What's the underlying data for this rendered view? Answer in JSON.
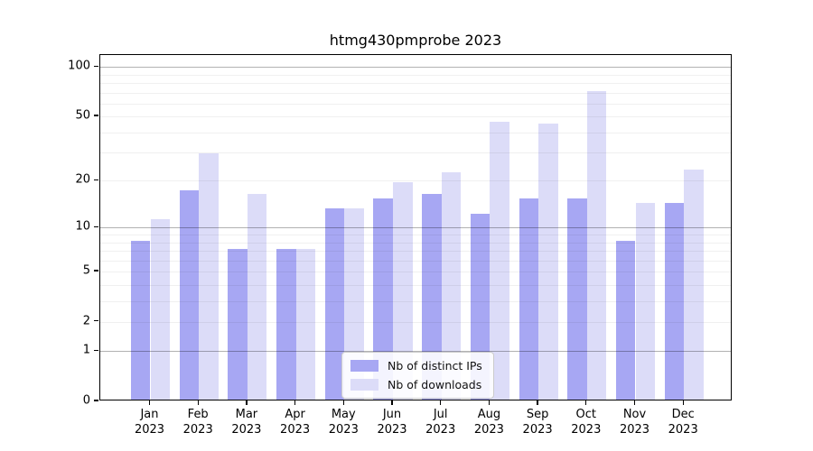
{
  "title": "htmg430pmprobe 2023",
  "chart_data": {
    "type": "bar",
    "title": "htmg430pmprobe 2023",
    "months": [
      "Jan",
      "Feb",
      "Mar",
      "Apr",
      "May",
      "Jun",
      "Jul",
      "Aug",
      "Sep",
      "Oct",
      "Nov",
      "Dec"
    ],
    "year": "2023",
    "series": [
      {
        "name": "Nb of distinct IPs",
        "color": "#a7a7f3",
        "values": [
          8,
          17,
          7,
          7,
          13,
          15,
          16,
          12,
          15,
          15,
          8,
          14
        ]
      },
      {
        "name": "Nb of downloads",
        "color": "#dcdcf8",
        "values": [
          11,
          29,
          16,
          7,
          13,
          19,
          22,
          45,
          44,
          70,
          14,
          23
        ]
      }
    ],
    "yscale": "log1p",
    "ylim": [
      0,
      118
    ],
    "ytick_values": [
      0,
      1,
      2,
      5,
      10,
      20,
      50,
      100
    ],
    "ytick_labels": [
      "0",
      "1",
      "2",
      "5",
      "10",
      "20",
      "50",
      "100"
    ],
    "major_gridlines": [
      1,
      10,
      100
    ],
    "minor_gridlines": [
      2,
      3,
      4,
      5,
      6,
      7,
      8,
      9,
      20,
      30,
      40,
      50,
      60,
      70,
      80,
      90
    ],
    "grid": true,
    "legend_position": "lower center"
  }
}
